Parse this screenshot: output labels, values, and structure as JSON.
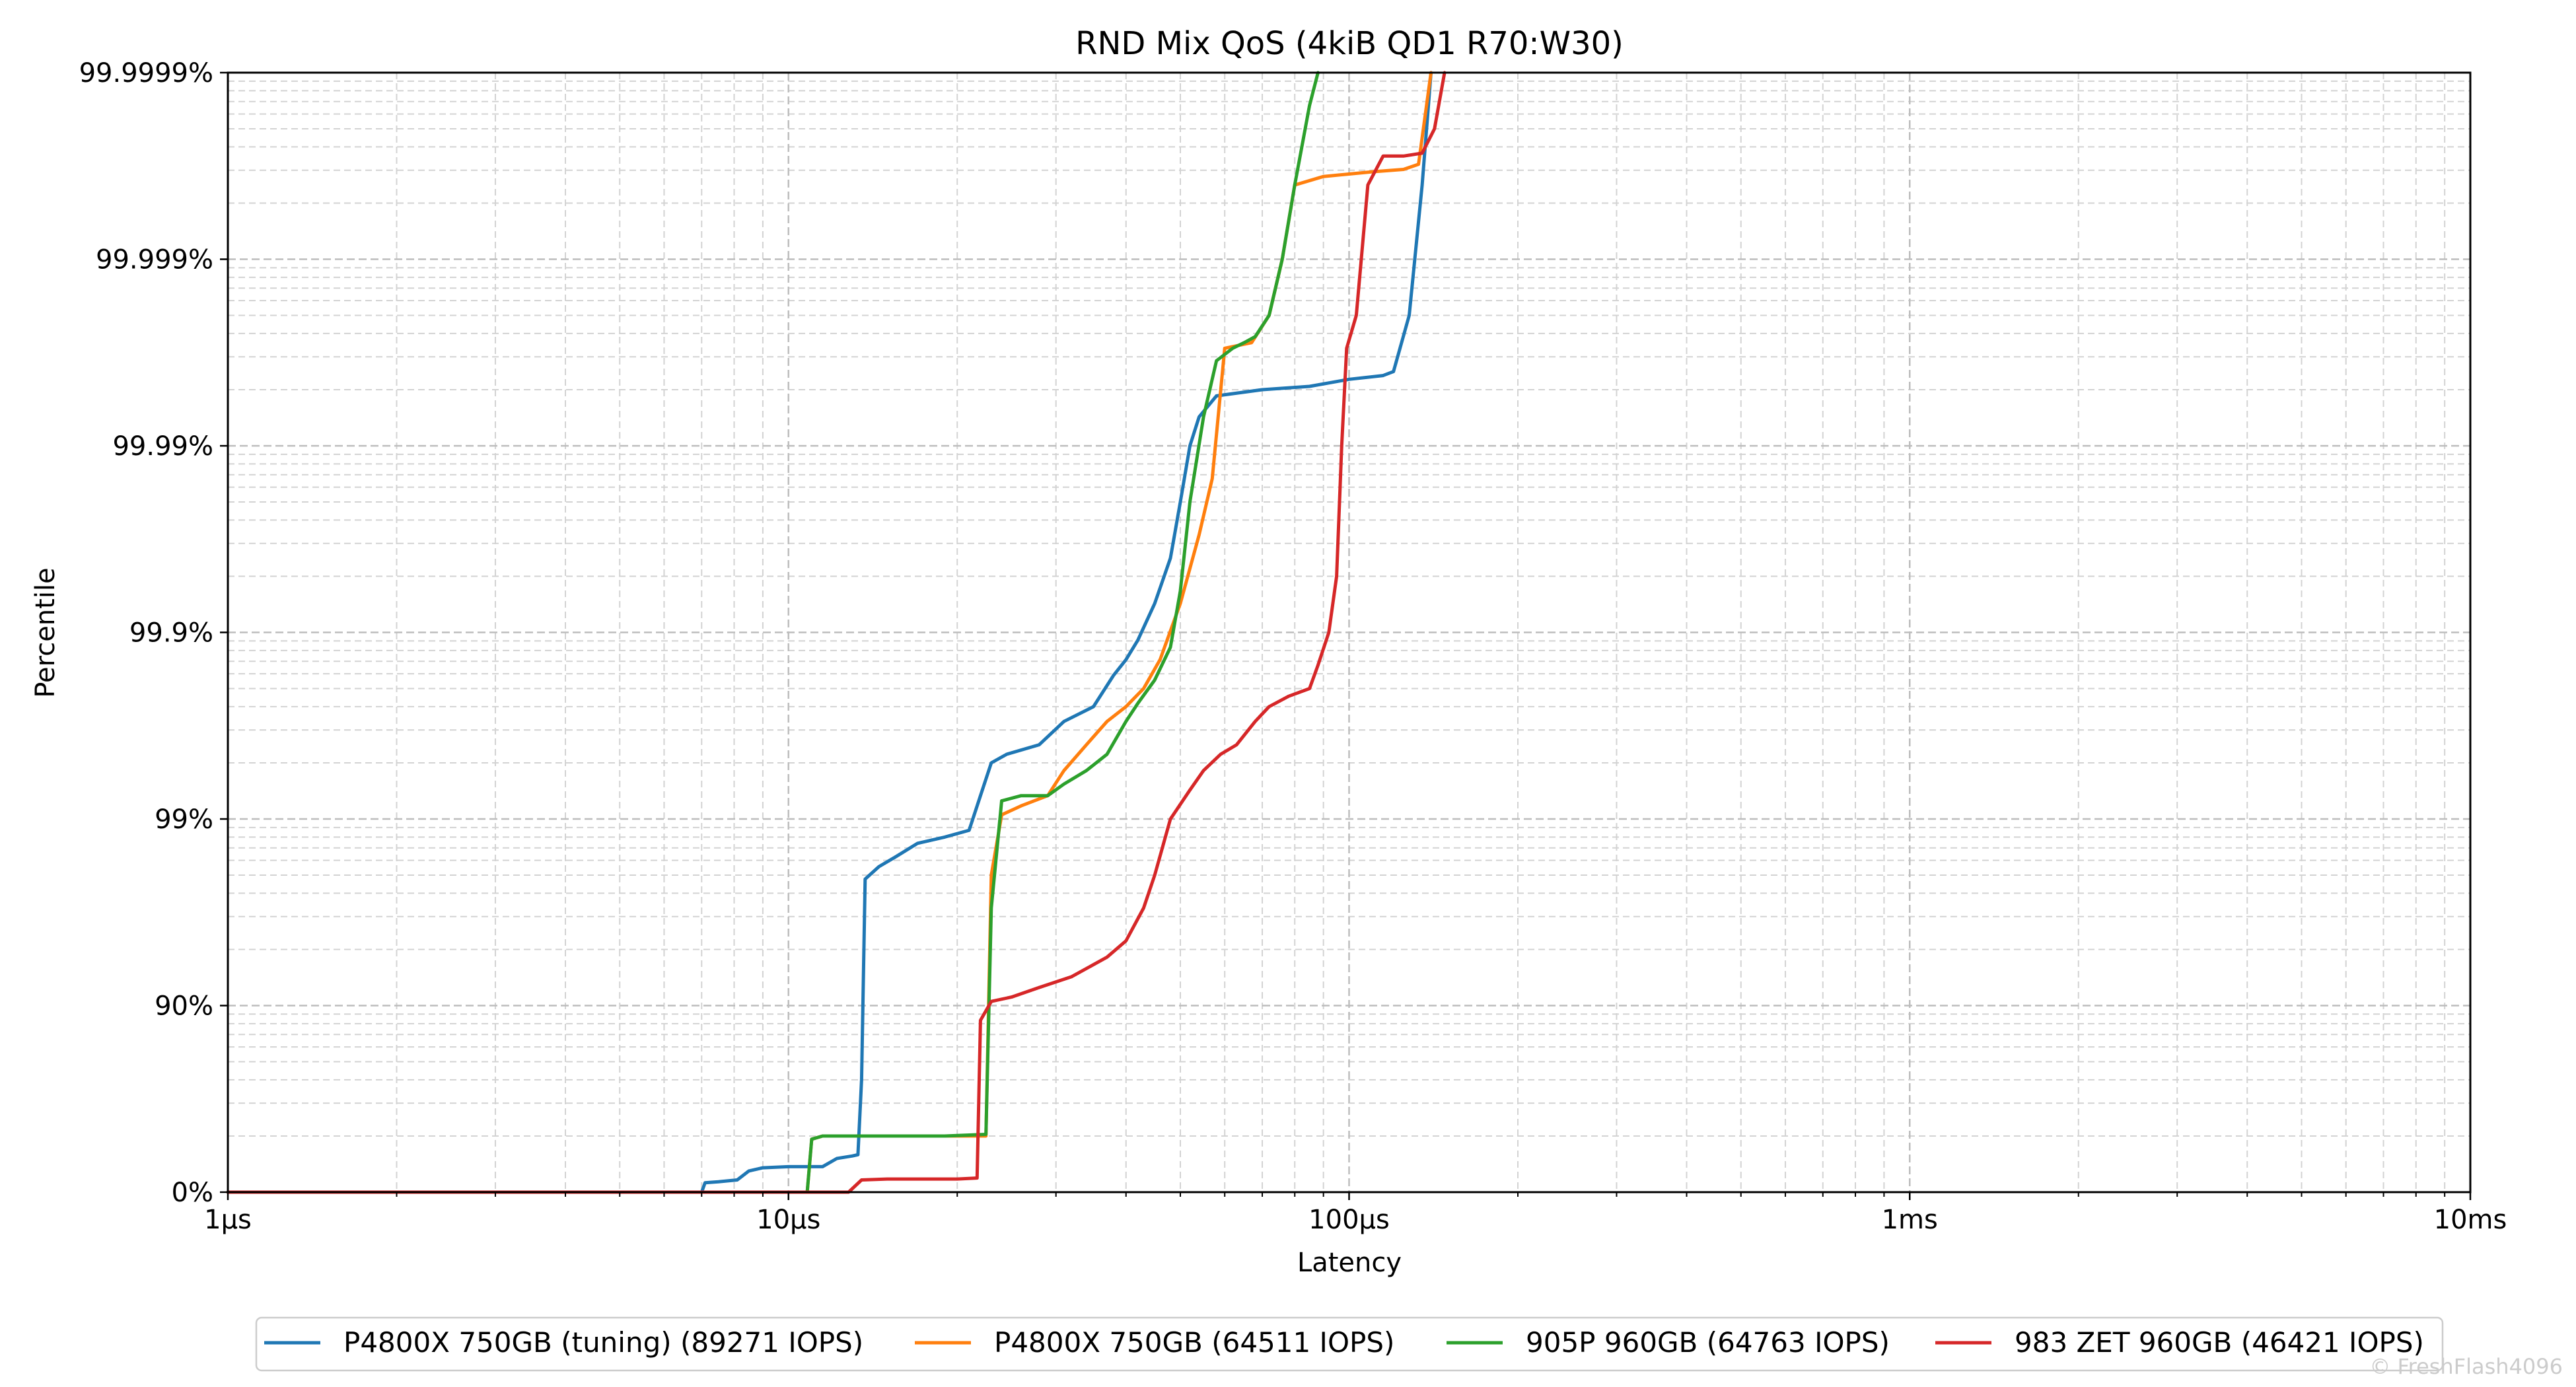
{
  "chart_data": {
    "type": "line",
    "title": "RND Mix QoS (4kiB QD1 R70:W30)",
    "xlabel": "Latency",
    "ylabel": "Percentile",
    "x_scale": "log",
    "y_scale": "nines",
    "xlim_us": [
      1,
      10000
    ],
    "x_ticks": [
      {
        "value_us": 1,
        "label": "1µs"
      },
      {
        "value_us": 10,
        "label": "10µs"
      },
      {
        "value_us": 100,
        "label": "100µs"
      },
      {
        "value_us": 1000,
        "label": "1ms"
      },
      {
        "value_us": 10000,
        "label": "10ms"
      }
    ],
    "y_ticks": [
      {
        "value_pct": 0,
        "label": "0%"
      },
      {
        "value_pct": 90,
        "label": "90%"
      },
      {
        "value_pct": 99,
        "label": "99%"
      },
      {
        "value_pct": 99.9,
        "label": "99.9%"
      },
      {
        "value_pct": 99.99,
        "label": "99.99%"
      },
      {
        "value_pct": 99.999,
        "label": "99.999%"
      },
      {
        "value_pct": 99.9999,
        "label": "99.9999%"
      }
    ],
    "grid": true,
    "legend_position": "bottom",
    "series": [
      {
        "name": "P4800X 750GB (tuning) (89271 IOPS)",
        "color": "#1f77b4",
        "points": [
          [
            1,
            0
          ],
          [
            7,
            0
          ],
          [
            7.1,
            11
          ],
          [
            7.5,
            12
          ],
          [
            8.1,
            14
          ],
          [
            8.5,
            23
          ],
          [
            9,
            26
          ],
          [
            10,
            27
          ],
          [
            11.5,
            27
          ],
          [
            12.2,
            34
          ],
          [
            13,
            36
          ],
          [
            13.3,
            37
          ],
          [
            13.5,
            75
          ],
          [
            13.7,
            97.9
          ],
          [
            14.5,
            98.2
          ],
          [
            15.5,
            98.4
          ],
          [
            17,
            98.65
          ],
          [
            19,
            98.75
          ],
          [
            21,
            98.85
          ],
          [
            22,
            99.25
          ],
          [
            23,
            99.5
          ],
          [
            24.5,
            99.55
          ],
          [
            28,
            99.6
          ],
          [
            31,
            99.7
          ],
          [
            35,
            99.75
          ],
          [
            38,
            99.83
          ],
          [
            40,
            99.86
          ],
          [
            42,
            99.89
          ],
          [
            45,
            99.93
          ],
          [
            48,
            99.96
          ],
          [
            50,
            99.98
          ],
          [
            52,
            99.99
          ],
          [
            54,
            99.993
          ],
          [
            58,
            99.9946
          ],
          [
            70,
            99.995
          ],
          [
            85,
            99.9952
          ],
          [
            100,
            99.9956
          ],
          [
            115,
            99.9958
          ],
          [
            120,
            99.996
          ],
          [
            128,
            99.998
          ],
          [
            135,
            99.9996
          ],
          [
            140,
            99.9999
          ]
        ]
      },
      {
        "name": "P4800X 750GB (64511 IOPS)",
        "color": "#ff7f0e",
        "points": [
          [
            1,
            0
          ],
          [
            10.8,
            0
          ],
          [
            11,
            48
          ],
          [
            11.5,
            50
          ],
          [
            15,
            50
          ],
          [
            19,
            50
          ],
          [
            22.5,
            50
          ],
          [
            23,
            98
          ],
          [
            24,
            99.05
          ],
          [
            26,
            99.15
          ],
          [
            29,
            99.25
          ],
          [
            31,
            99.45
          ],
          [
            34,
            99.6
          ],
          [
            37,
            99.7
          ],
          [
            40,
            99.75
          ],
          [
            43,
            99.8
          ],
          [
            46,
            99.86
          ],
          [
            50,
            99.93
          ],
          [
            54,
            99.97
          ],
          [
            57,
            99.985
          ],
          [
            60,
            99.997
          ],
          [
            67,
            99.9972
          ],
          [
            72,
            99.998
          ],
          [
            76,
            99.999
          ],
          [
            80,
            99.9996
          ],
          [
            90,
            99.99964
          ],
          [
            110,
            99.99966
          ],
          [
            125,
            99.99967
          ],
          [
            133,
            99.99969
          ],
          [
            140,
            99.9999
          ]
        ]
      },
      {
        "name": "905P 960GB (64763 IOPS)",
        "color": "#2ca02c",
        "points": [
          [
            1,
            0
          ],
          [
            10.8,
            0
          ],
          [
            11,
            48
          ],
          [
            11.5,
            50
          ],
          [
            15,
            50
          ],
          [
            19,
            50
          ],
          [
            22.5,
            51
          ],
          [
            23,
            97
          ],
          [
            24,
            99.2
          ],
          [
            26,
            99.25
          ],
          [
            29,
            99.25
          ],
          [
            31,
            99.35
          ],
          [
            34,
            99.45
          ],
          [
            37,
            99.55
          ],
          [
            40,
            99.7
          ],
          [
            42,
            99.76
          ],
          [
            45,
            99.82
          ],
          [
            48,
            99.88
          ],
          [
            50,
            99.94
          ],
          [
            52,
            99.98
          ],
          [
            55,
            99.993
          ],
          [
            58,
            99.9965
          ],
          [
            62,
            99.997
          ],
          [
            65,
            99.9972
          ],
          [
            68,
            99.9974
          ],
          [
            72,
            99.998
          ],
          [
            76,
            99.999
          ],
          [
            80,
            99.9996
          ],
          [
            85,
            99.99985
          ],
          [
            88,
            99.9999
          ]
        ]
      },
      {
        "name": "983 ZET 960GB (46421 IOPS)",
        "color": "#d62728",
        "points": [
          [
            1,
            0
          ],
          [
            12.8,
            0
          ],
          [
            13.5,
            14
          ],
          [
            15,
            15
          ],
          [
            18,
            15
          ],
          [
            20,
            15
          ],
          [
            21.7,
            16
          ],
          [
            22,
            88
          ],
          [
            23,
            90.5
          ],
          [
            25,
            91
          ],
          [
            28,
            92
          ],
          [
            32,
            93
          ],
          [
            37,
            94.5
          ],
          [
            40,
            95.5
          ],
          [
            43,
            97
          ],
          [
            45,
            98
          ],
          [
            48,
            99
          ],
          [
            52,
            99.3
          ],
          [
            55,
            99.45
          ],
          [
            59,
            99.55
          ],
          [
            63,
            99.6
          ],
          [
            68,
            99.7
          ],
          [
            72,
            99.75
          ],
          [
            78,
            99.78
          ],
          [
            85,
            99.8
          ],
          [
            88,
            99.85
          ],
          [
            92,
            99.9
          ],
          [
            95,
            99.95
          ],
          [
            97,
            99.99
          ],
          [
            99,
            99.997
          ],
          [
            103,
            99.998
          ],
          [
            108,
            99.9996
          ],
          [
            115,
            99.99972
          ],
          [
            125,
            99.99972
          ],
          [
            135,
            99.99973
          ],
          [
            142,
            99.9998
          ],
          [
            148,
            99.9999
          ]
        ]
      }
    ]
  },
  "watermark": "© FreshFlash4096"
}
